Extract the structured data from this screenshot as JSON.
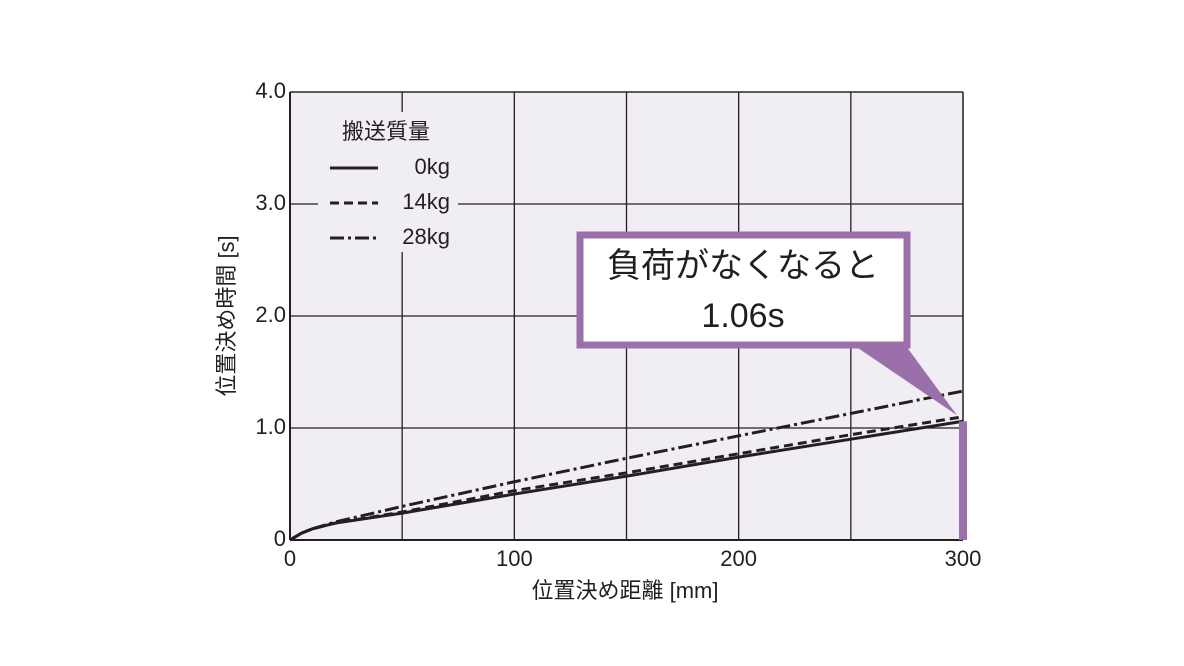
{
  "chart_data": {
    "type": "line",
    "xlabel": "位置決め距離 [mm]",
    "ylabel": "位置決め時間 [s]",
    "x": [
      0,
      5,
      10,
      20,
      50,
      100,
      150,
      200,
      250,
      300
    ],
    "series": [
      {
        "name": "0kg",
        "color": "#231f20",
        "style": "solid",
        "values": [
          0,
          0.06,
          0.1,
          0.15,
          0.24,
          0.41,
          0.57,
          0.74,
          0.9,
          1.06
        ]
      },
      {
        "name": "14kg",
        "color": "#231f20",
        "style": "dashed",
        "values": [
          0,
          0.06,
          0.1,
          0.15,
          0.25,
          0.44,
          0.6,
          0.77,
          0.94,
          1.1
        ]
      },
      {
        "name": "28kg",
        "color": "#231f20",
        "style": "dashdot",
        "values": [
          0,
          0.06,
          0.1,
          0.16,
          0.3,
          0.52,
          0.73,
          0.93,
          1.13,
          1.33
        ]
      }
    ],
    "legend_title": "搬送質量",
    "legend_position": "upper left",
    "xlim": [
      0,
      300
    ],
    "ylim": [
      0,
      4
    ],
    "xticks": [
      0,
      {
        "value": 50,
        "label": null
      },
      100,
      {
        "value": 150,
        "label": null
      },
      200,
      {
        "value": 250,
        "label": null
      },
      300
    ],
    "yticks": [
      0,
      {
        "value": 1,
        "label": "1.0"
      },
      {
        "value": 2,
        "label": "2.0"
      },
      {
        "value": 3,
        "label": "3.0"
      },
      {
        "value": 4,
        "label": "4.0"
      }
    ],
    "grid": true,
    "plot_background": "#f1edf4",
    "annotation": {
      "text": "負荷がなくなると",
      "x": 300,
      "value": 1.06,
      "value_label": "1.06s",
      "color": "#9b6fa9"
    }
  }
}
